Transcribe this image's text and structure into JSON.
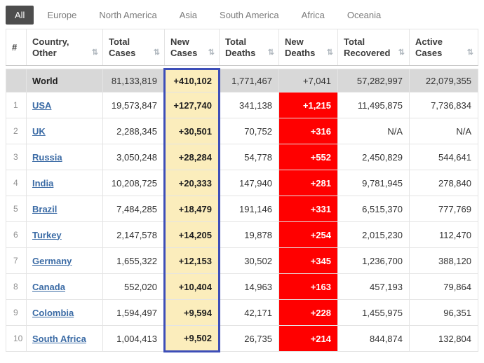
{
  "tabs": {
    "items": [
      {
        "label": "All",
        "active": true
      },
      {
        "label": "Europe",
        "active": false
      },
      {
        "label": "North America",
        "active": false
      },
      {
        "label": "Asia",
        "active": false
      },
      {
        "label": "South America",
        "active": false
      },
      {
        "label": "Africa",
        "active": false
      },
      {
        "label": "Oceania",
        "active": false
      }
    ]
  },
  "icons": {
    "sort": "⇅"
  },
  "colors": {
    "highlight_yellow": "#fbedbc",
    "column_outline_blue": "#3d4eb8",
    "alert_red": "#ff0000",
    "link_blue": "#3b6ba5",
    "world_row_gray": "#d8d8d8",
    "active_tab_bg": "#4d4d4d"
  },
  "table": {
    "columns": [
      {
        "key": "rank",
        "lines": [
          "#"
        ],
        "sortable": false,
        "align": "left"
      },
      {
        "key": "country",
        "lines": [
          "Country,",
          "Other"
        ],
        "sortable": true,
        "align": "left"
      },
      {
        "key": "total_cases",
        "lines": [
          "Total",
          "Cases"
        ],
        "sortable": true,
        "align": "right"
      },
      {
        "key": "new_cases",
        "lines": [
          "New",
          "Cases"
        ],
        "sortable": true,
        "align": "right",
        "highlighted": true
      },
      {
        "key": "total_deaths",
        "lines": [
          "Total",
          "Deaths"
        ],
        "sortable": true,
        "align": "right"
      },
      {
        "key": "new_deaths",
        "lines": [
          "New",
          "Deaths"
        ],
        "sortable": true,
        "align": "right"
      },
      {
        "key": "total_recovered",
        "lines": [
          "Total",
          "Recovered"
        ],
        "sortable": true,
        "align": "right"
      },
      {
        "key": "active_cases",
        "lines": [
          "Active",
          "Cases"
        ],
        "sortable": true,
        "align": "right"
      }
    ],
    "world_row": {
      "rank": "",
      "country": "World",
      "total_cases": "81,133,819",
      "new_cases": "+410,102",
      "total_deaths": "1,771,467",
      "new_deaths": "+7,041",
      "total_recovered": "57,282,997",
      "active_cases": "22,079,355"
    },
    "rows": [
      {
        "rank": "1",
        "country": "USA",
        "total_cases": "19,573,847",
        "new_cases": "+127,740",
        "total_deaths": "341,138",
        "new_deaths": "+1,215",
        "total_recovered": "11,495,875",
        "active_cases": "7,736,834"
      },
      {
        "rank": "2",
        "country": "UK",
        "total_cases": "2,288,345",
        "new_cases": "+30,501",
        "total_deaths": "70,752",
        "new_deaths": "+316",
        "total_recovered": "N/A",
        "active_cases": "N/A"
      },
      {
        "rank": "3",
        "country": "Russia",
        "total_cases": "3,050,248",
        "new_cases": "+28,284",
        "total_deaths": "54,778",
        "new_deaths": "+552",
        "total_recovered": "2,450,829",
        "active_cases": "544,641"
      },
      {
        "rank": "4",
        "country": "India",
        "total_cases": "10,208,725",
        "new_cases": "+20,333",
        "total_deaths": "147,940",
        "new_deaths": "+281",
        "total_recovered": "9,781,945",
        "active_cases": "278,840"
      },
      {
        "rank": "5",
        "country": "Brazil",
        "total_cases": "7,484,285",
        "new_cases": "+18,479",
        "total_deaths": "191,146",
        "new_deaths": "+331",
        "total_recovered": "6,515,370",
        "active_cases": "777,769"
      },
      {
        "rank": "6",
        "country": "Turkey",
        "total_cases": "2,147,578",
        "new_cases": "+14,205",
        "total_deaths": "19,878",
        "new_deaths": "+254",
        "total_recovered": "2,015,230",
        "active_cases": "112,470"
      },
      {
        "rank": "7",
        "country": "Germany",
        "total_cases": "1,655,322",
        "new_cases": "+12,153",
        "total_deaths": "30,502",
        "new_deaths": "+345",
        "total_recovered": "1,236,700",
        "active_cases": "388,120"
      },
      {
        "rank": "8",
        "country": "Canada",
        "total_cases": "552,020",
        "new_cases": "+10,404",
        "total_deaths": "14,963",
        "new_deaths": "+163",
        "total_recovered": "457,193",
        "active_cases": "79,864"
      },
      {
        "rank": "9",
        "country": "Colombia",
        "total_cases": "1,594,497",
        "new_cases": "+9,594",
        "total_deaths": "42,171",
        "new_deaths": "+228",
        "total_recovered": "1,455,975",
        "active_cases": "96,351"
      },
      {
        "rank": "10",
        "country": "South Africa",
        "total_cases": "1,004,413",
        "new_cases": "+9,502",
        "total_deaths": "26,735",
        "new_deaths": "+214",
        "total_recovered": "844,874",
        "active_cases": "132,804"
      }
    ]
  }
}
